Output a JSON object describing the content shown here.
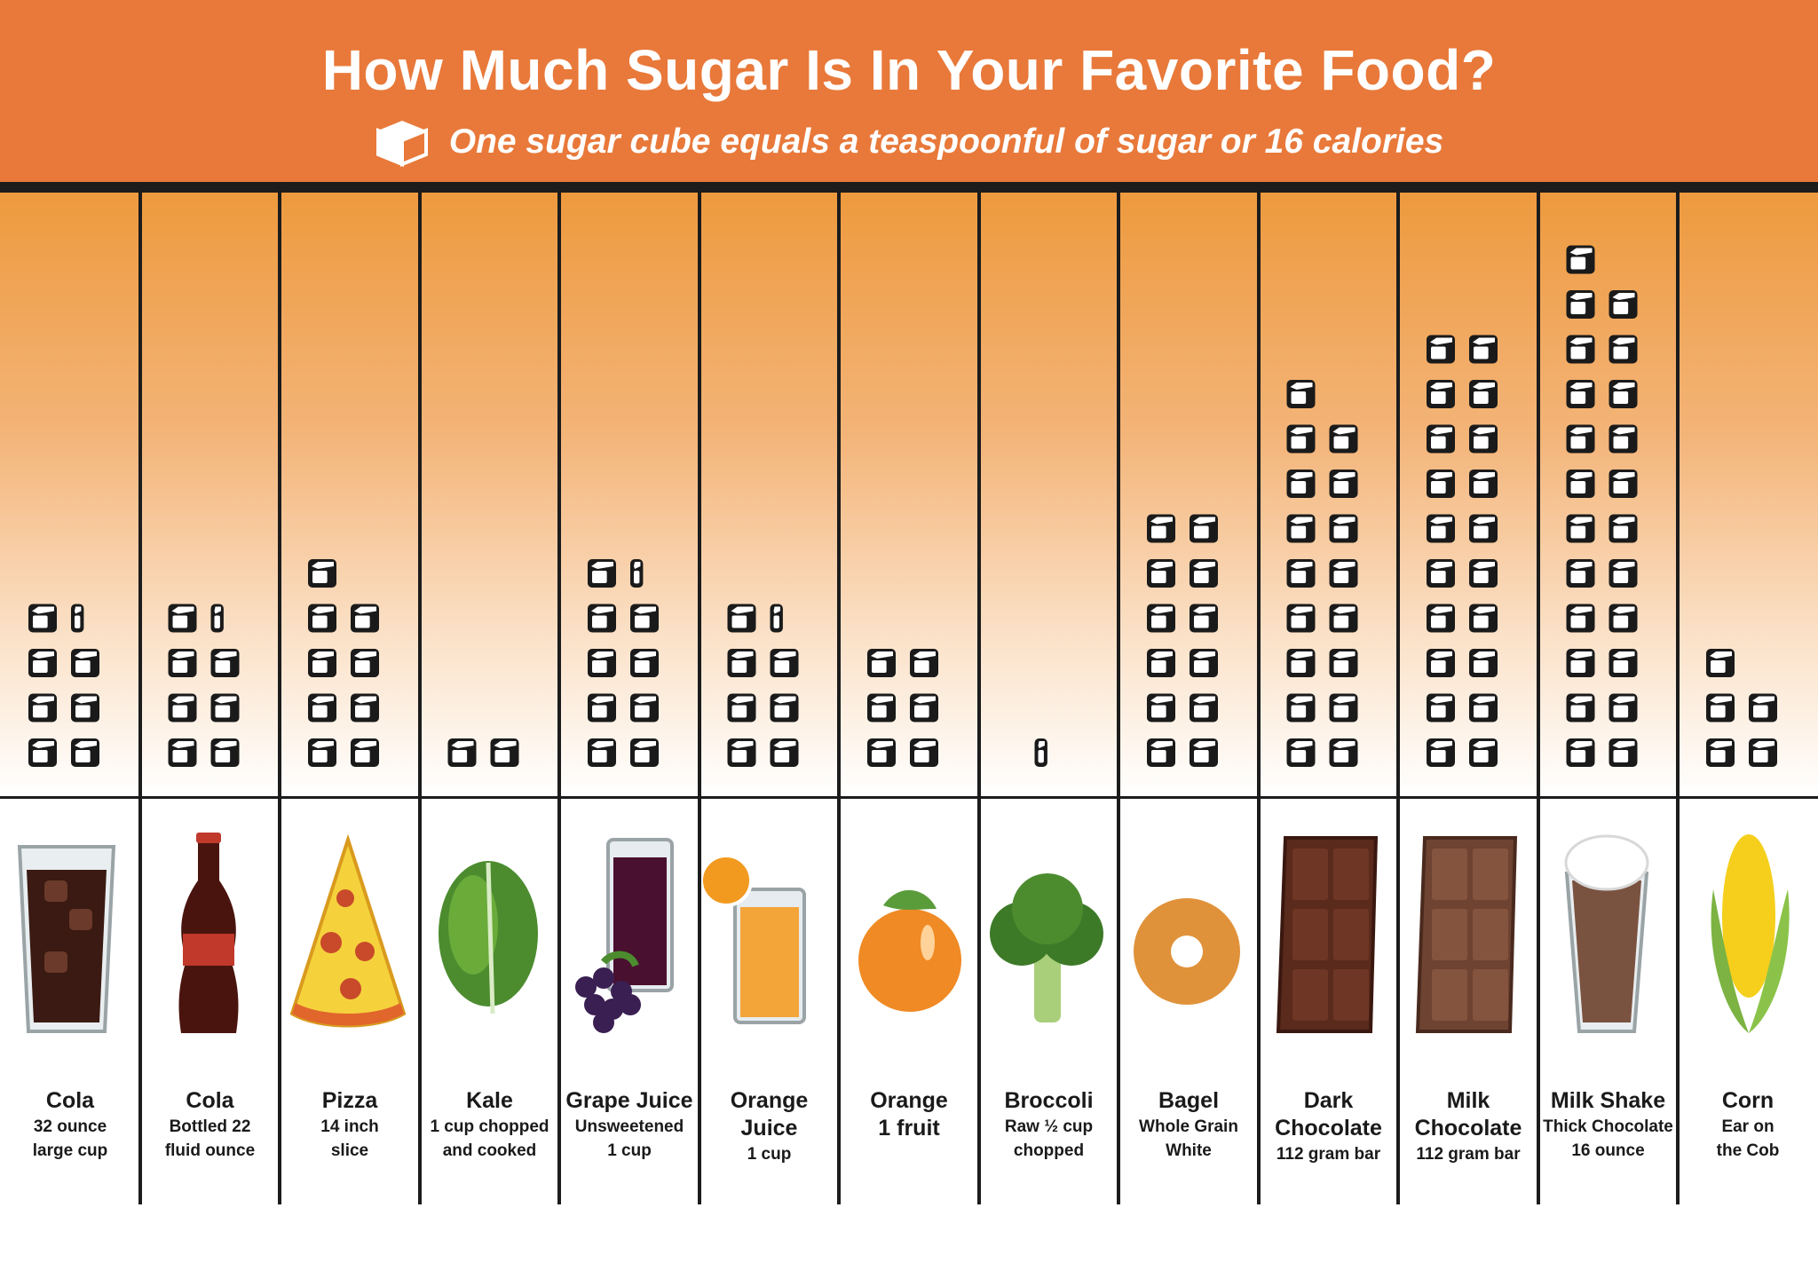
{
  "header": {
    "title": "How Much Sugar Is In Your Favorite Food?",
    "subtitle": "One sugar cube equals a teaspoonful of sugar or 16 calories",
    "subtitle_icon": "sugar-cube-icon"
  },
  "colors": {
    "header_bg": "#e8793a",
    "gradient_top": "#ee9a3e",
    "gradient_bottom": "#ffffff",
    "cube": "#1a1a1a",
    "divider": "#1c1c1c"
  },
  "chart_data": {
    "type": "bar",
    "unit": "sugar cubes",
    "categories": [
      "Cola",
      "Cola",
      "Pizza",
      "Kale",
      "Grape Juice",
      "Orange Juice",
      "Orange",
      "Broccoli",
      "Bagel",
      "Dark Chocolate",
      "Milk Chocolate",
      "Milk Shake",
      "Corn"
    ],
    "values": [
      7.5,
      7.5,
      9,
      2,
      9.5,
      7.5,
      6,
      0.5,
      12,
      17,
      20,
      23,
      5
    ]
  },
  "items": [
    {
      "name": "Cola",
      "desc": [
        "32 ounce",
        "large cup"
      ],
      "cubes": 7.5,
      "icon": "cola-glass-icon"
    },
    {
      "name": "Cola",
      "desc": [
        "Bottled 22",
        "fluid ounce"
      ],
      "cubes": 7.5,
      "icon": "cola-bottle-icon"
    },
    {
      "name": "Pizza",
      "desc": [
        "14 inch",
        "slice"
      ],
      "cubes": 9,
      "icon": "pizza-slice-icon"
    },
    {
      "name": "Kale",
      "desc": [
        "1 cup chopped",
        "and cooked"
      ],
      "cubes": 2,
      "icon": "kale-icon"
    },
    {
      "name": "Grape Juice",
      "desc": [
        "Unsweetened",
        "1 cup"
      ],
      "cubes": 9.5,
      "icon": "grape-juice-icon"
    },
    {
      "name": "Orange Juice",
      "desc": [
        "1 cup"
      ],
      "cubes": 7.5,
      "icon": "orange-juice-icon"
    },
    {
      "name": "Orange",
      "desc": [
        "1 fruit"
      ],
      "cubes": 6,
      "icon": "orange-icon"
    },
    {
      "name": "Broccoli",
      "desc": [
        "Raw ½ cup",
        "chopped"
      ],
      "cubes": 0.5,
      "icon": "broccoli-icon"
    },
    {
      "name": "Bagel",
      "desc": [
        "Whole Grain",
        "White"
      ],
      "cubes": 12,
      "icon": "bagel-icon"
    },
    {
      "name": "Dark",
      "desc": [
        "Chocolate",
        "112 gram bar"
      ],
      "cubes": 17,
      "icon": "dark-chocolate-icon"
    },
    {
      "name": "Milk",
      "desc": [
        "Chocolate",
        "112 gram bar"
      ],
      "cubes": 20,
      "icon": "milk-chocolate-icon"
    },
    {
      "name": "Milk Shake",
      "desc": [
        "Thick Chocolate",
        "16 ounce"
      ],
      "cubes": 23,
      "icon": "milkshake-icon"
    },
    {
      "name": "Corn",
      "desc": [
        "Ear on",
        "the Cob"
      ],
      "cubes": 5,
      "icon": "corn-icon"
    }
  ]
}
